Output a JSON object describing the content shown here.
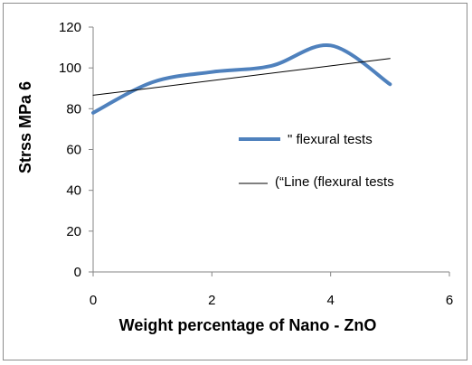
{
  "chart_data": {
    "type": "line",
    "xlabel": "Weight percentage of Nano - ZnO",
    "ylabel": "Strss MPa 6",
    "xlim": [
      0,
      6
    ],
    "ylim": [
      0,
      120
    ],
    "x_ticks": [
      "0",
      "2",
      "4",
      "6"
    ],
    "y_ticks": [
      "0",
      "20",
      "40",
      "60",
      "80",
      "100",
      "120"
    ],
    "grid": false,
    "legend_position": "right",
    "series": [
      {
        "name": "\" flexural tests",
        "style": "smooth",
        "color": "#4f81bd",
        "x": [
          0,
          1,
          2,
          3,
          4,
          5
        ],
        "y": [
          78,
          93,
          98,
          101,
          111,
          92
        ]
      },
      {
        "name": "(“Line (flexural tests",
        "style": "linear-trendline",
        "color": "#000000",
        "x": [
          0,
          5
        ],
        "y": [
          86.6,
          104.6
        ]
      }
    ]
  }
}
